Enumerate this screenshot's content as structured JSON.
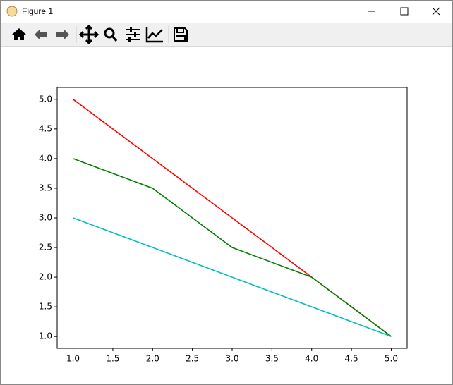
{
  "window": {
    "title": "Figure 1"
  },
  "chart_data": {
    "type": "line",
    "x": [
      1,
      2,
      3,
      4,
      5
    ],
    "series": [
      {
        "color": "#ff0000",
        "values": [
          5,
          4,
          3,
          2,
          1
        ]
      },
      {
        "color": "#008000",
        "values": [
          4,
          3.5,
          2.5,
          2,
          1
        ]
      },
      {
        "color": "#00bfbf",
        "values": [
          3,
          2.5,
          2,
          1.5,
          1
        ]
      }
    ],
    "xlim": [
      0.8,
      5.2
    ],
    "ylim": [
      0.8,
      5.2
    ],
    "xticks": [
      {
        "value": 1,
        "label": "1.0"
      },
      {
        "value": 1.5,
        "label": "1.5"
      },
      {
        "value": 2,
        "label": "2.0"
      },
      {
        "value": 2.5,
        "label": "2.5"
      },
      {
        "value": 3,
        "label": "3.0"
      },
      {
        "value": 3.5,
        "label": "3.5"
      },
      {
        "value": 4,
        "label": "4.0"
      },
      {
        "value": 4.5,
        "label": "4.5"
      },
      {
        "value": 5,
        "label": "5.0"
      }
    ],
    "yticks": [
      {
        "value": 1,
        "label": "1.0"
      },
      {
        "value": 1.5,
        "label": "1.5"
      },
      {
        "value": 2,
        "label": "2.0"
      },
      {
        "value": 2.5,
        "label": "2.5"
      },
      {
        "value": 3,
        "label": "3.0"
      },
      {
        "value": 3.5,
        "label": "3.5"
      },
      {
        "value": 4,
        "label": "4.0"
      },
      {
        "value": 4.5,
        "label": "4.5"
      },
      {
        "value": 5,
        "label": "5.0"
      }
    ]
  }
}
